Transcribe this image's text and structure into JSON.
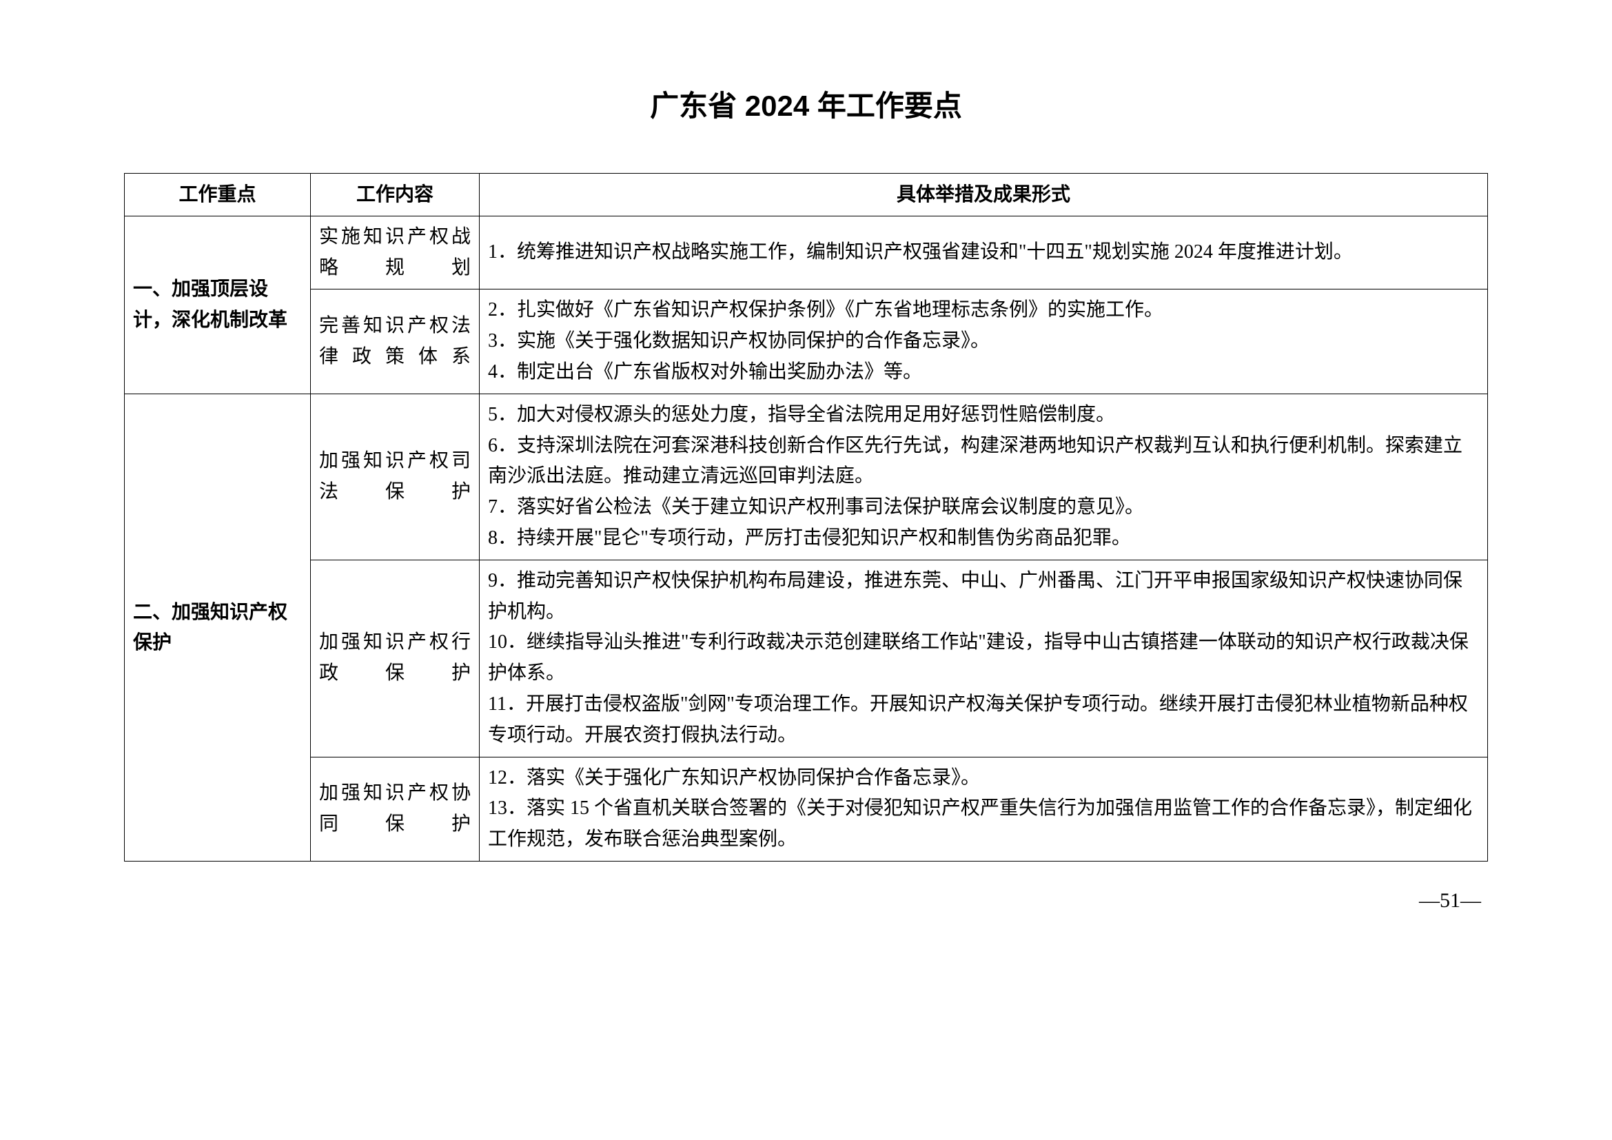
{
  "title": "广东省 2024 年工作要点",
  "headers": {
    "focus": "工作重点",
    "content": "工作内容",
    "detail": "具体举措及成果形式"
  },
  "sections": [
    {
      "focus": "一、加强顶层设计，深化机制改革",
      "rows": [
        {
          "content": "实施知识产权战略规划",
          "detail": "1．统筹推进知识产权战略实施工作，编制知识产权强省建设和\"十四五\"规划实施 2024 年度推进计划。"
        },
        {
          "content": "完善知识产权法律政策体系",
          "detail": "2．扎实做好《广东省知识产权保护条例》《广东省地理标志条例》的实施工作。\n3．实施《关于强化数据知识产权协同保护的合作备忘录》。\n4．制定出台《广东省版权对外输出奖励办法》等。"
        }
      ]
    },
    {
      "focus": "二、加强知识产权保护",
      "rows": [
        {
          "content": "加强知识产权司法保护",
          "detail": "5．加大对侵权源头的惩处力度，指导全省法院用足用好惩罚性赔偿制度。\n6．支持深圳法院在河套深港科技创新合作区先行先试，构建深港两地知识产权裁判互认和执行便利机制。探索建立南沙派出法庭。推动建立清远巡回审判法庭。\n7．落实好省公检法《关于建立知识产权刑事司法保护联席会议制度的意见》。\n8．持续开展\"昆仑\"专项行动，严厉打击侵犯知识产权和制售伪劣商品犯罪。"
        },
        {
          "content": "加强知识产权行政保护",
          "detail": "9．推动完善知识产权快保护机构布局建设，推进东莞、中山、广州番禺、江门开平申报国家级知识产权快速协同保护机构。\n10．继续指导汕头推进\"专利行政裁决示范创建联络工作站\"建设，指导中山古镇搭建一体联动的知识产权行政裁决保护体系。\n11．开展打击侵权盗版\"剑网\"专项治理工作。开展知识产权海关保护专项行动。继续开展打击侵犯林业植物新品种权专项行动。开展农资打假执法行动。"
        },
        {
          "content": "加强知识产权协同保护",
          "detail": "12．落实《关于强化广东知识产权协同保护合作备忘录》。\n13．落实 15 个省直机关联合签署的《关于对侵犯知识产权严重失信行为加强信用监管工作的合作备忘录》，制定细化工作规范，发布联合惩治典型案例。"
        }
      ]
    }
  ],
  "pageNumber": "—51—"
}
